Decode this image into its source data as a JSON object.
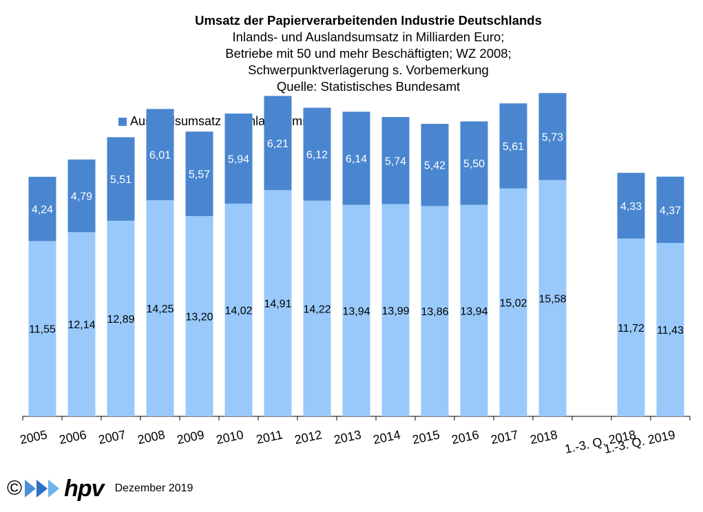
{
  "titles": {
    "title": "Umsatz der Papierverarbeitenden Industrie Deutschlands",
    "line2": "Inlands- und Auslandsumsatz in Milliarden Euro;",
    "line3": "Betriebe mit 50 und mehr Beschäftigten; WZ 2008;",
    "line4": "Schwerpunktverlagerung s. Vorbemerkung",
    "line5": "Quelle: Statistisches Bundesamt"
  },
  "colors": {
    "ausland": "#4a86d0",
    "inland": "#99c9fa"
  },
  "footer": {
    "copyright": "©",
    "logo": "hpv",
    "date": "Dezember 2019"
  },
  "chart_data": {
    "type": "bar",
    "stacked": true,
    "categories": [
      "2005",
      "2006",
      "2007",
      "2008",
      "2009",
      "2010",
      "2011",
      "2012",
      "2013",
      "2014",
      "2015",
      "2016",
      "2017",
      "2018",
      "",
      "1.-3. Q. 2018",
      "1.-3. Q. 2019"
    ],
    "series": [
      {
        "name": "Inlandsumsatz",
        "values": [
          11.55,
          12.14,
          12.89,
          14.25,
          13.2,
          14.02,
          14.91,
          14.22,
          13.94,
          13.99,
          13.86,
          13.94,
          15.02,
          15.58,
          null,
          11.72,
          11.43
        ],
        "labels": [
          "11,55",
          "12,14",
          "12,89",
          "14,25",
          "13,20",
          "14,02",
          "14,91",
          "14,22",
          "13,94",
          "13,99",
          "13,86",
          "13,94",
          "15,02",
          "15,58",
          "",
          "11,72",
          "11,43"
        ]
      },
      {
        "name": "Auslandsumsatz",
        "values": [
          4.24,
          4.79,
          5.51,
          6.01,
          5.57,
          5.94,
          6.21,
          6.12,
          6.14,
          5.74,
          5.42,
          5.5,
          5.61,
          5.73,
          null,
          4.33,
          4.37
        ],
        "labels": [
          "4,24",
          "4,79",
          "5,51",
          "6,01",
          "5,57",
          "5,94",
          "6,21",
          "6,12",
          "6,14",
          "5,74",
          "5,42",
          "5,50",
          "5,61",
          "5,73",
          "",
          "4,33",
          "4,37"
        ]
      }
    ],
    "legend": [
      "Auslandsumsatz",
      "Inlandsumsatz"
    ],
    "legend_position": "top-left",
    "ylim": [
      0,
      22
    ],
    "grid": false
  }
}
